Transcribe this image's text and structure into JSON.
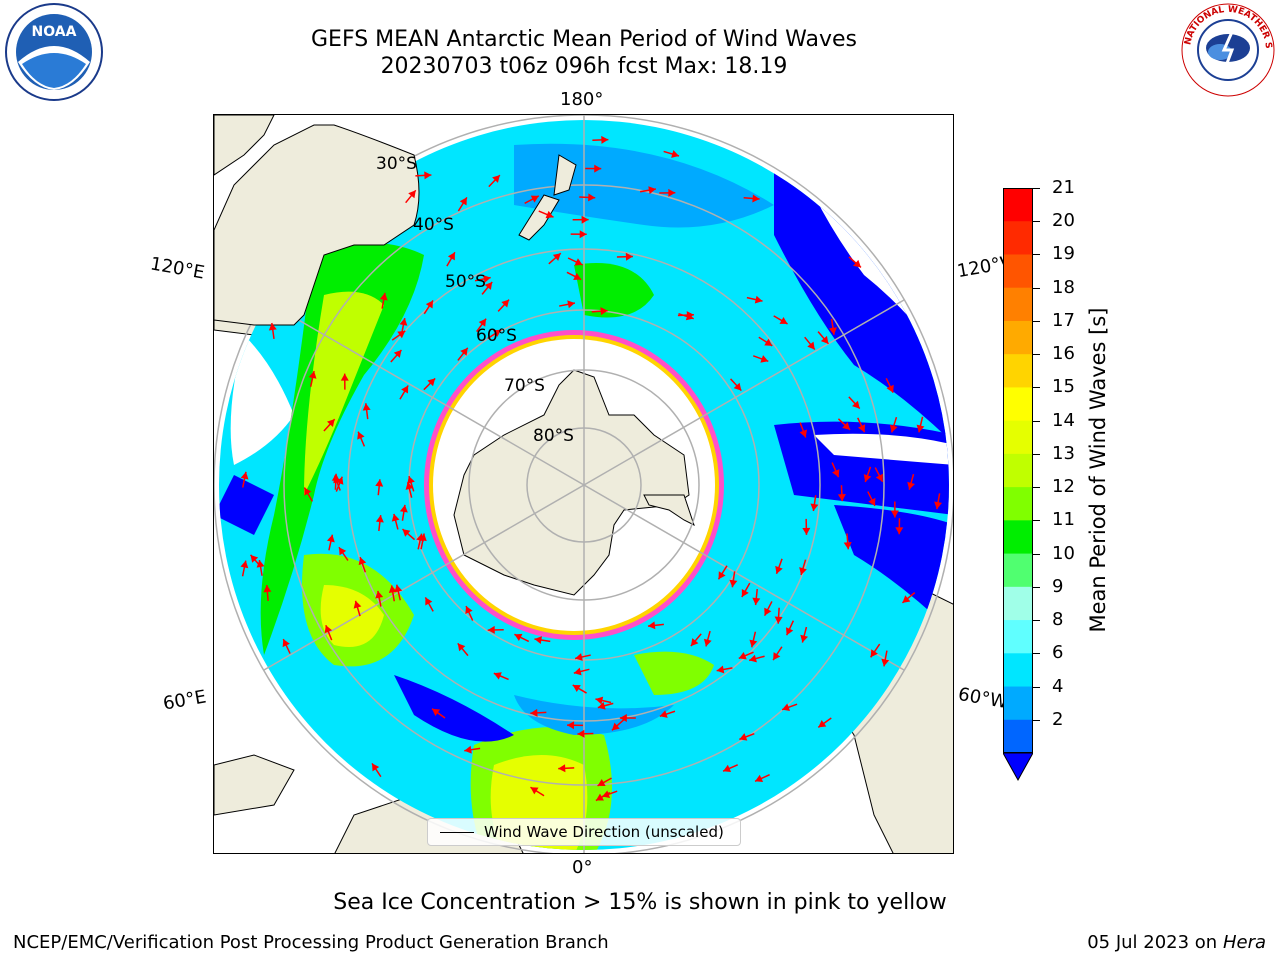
{
  "title": {
    "line1": "GEFS MEAN Antarctic Mean Period of Wind Waves",
    "line2": "20230703 t06z 096h fcst   Max: 18.19"
  },
  "map": {
    "projection": "south polar stereographic",
    "longitude_labels": {
      "top": "180°",
      "bottom": "0°",
      "upper_left": "120°E",
      "upper_right": "120°W",
      "lower_left": "60°E",
      "lower_right": "60°W"
    },
    "latitude_labels": [
      "30°S",
      "40°S",
      "50°S",
      "60°S",
      "70°S",
      "80°S"
    ],
    "land_color": "#eeecdc",
    "grid_color": "#b0b0b0",
    "arrow_color": "#ff0000",
    "legend_label": "Wind Wave Direction (unscaled)"
  },
  "colorbar": {
    "label": "Mean Period of Wind Waves [s]",
    "ticks": [
      "21",
      "20",
      "19",
      "18",
      "17",
      "16",
      "15",
      "14",
      "13",
      "12",
      "11",
      "10",
      "9",
      "8",
      "6",
      "4",
      "2"
    ],
    "colors_top_to_bottom": [
      "#ff0000",
      "#ff2a00",
      "#ff5500",
      "#ff8000",
      "#ffaa00",
      "#ffd400",
      "#ffff00",
      "#e5ff00",
      "#c0ff00",
      "#80ff00",
      "#00ee00",
      "#50ff70",
      "#a0ffe8",
      "#60ffff",
      "#00e6ff",
      "#00aaff",
      "#0066ff"
    ],
    "extend_color": "#0000ff"
  },
  "logos": {
    "left": "NOAA",
    "right": "NATIONAL WEATHER SERVICE"
  },
  "ice_note": "Sea Ice Concentration > 15% is shown in pink to yellow",
  "footer": {
    "left": "NCEP/EMC/Verification Post Processing Product Generation Branch",
    "right_date": "05 Jul 2023 on",
    "right_host": "Hera"
  }
}
